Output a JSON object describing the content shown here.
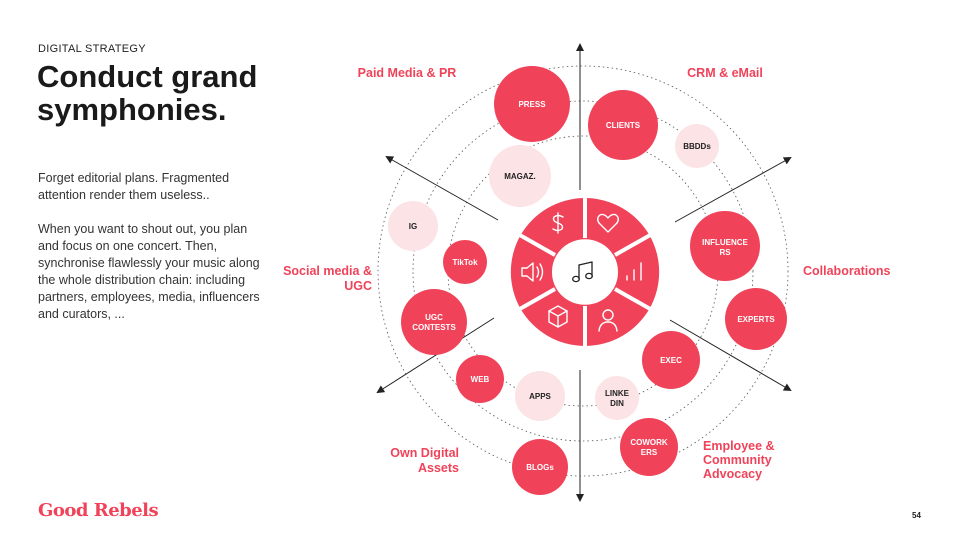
{
  "eyebrow": "DIGITAL STRATEGY",
  "title": "Conduct grand symphonies.",
  "intro": "Forget editorial plans. Fragmented attention render them useless..",
  "body": "When you want to shout out, you plan and focus on one concert. Then, synchronise flawlessly your music along the whole distribution chain: including partners, employees, media, influencers and curators, ...",
  "logo": "Good Rebels",
  "page_number": "54",
  "colors": {
    "accent": "#f0435a",
    "light": "#fbe3e6",
    "line": "#222222"
  },
  "quadrants": {
    "paid": "Paid Media & PR",
    "crm": "CRM & eMail",
    "social": [
      "Social media &",
      "UGC"
    ],
    "collab": "Collaborations",
    "owned": [
      "Own Digital",
      "Assets"
    ],
    "employee": [
      "Employee &",
      "Community",
      "Advocacy"
    ]
  },
  "bubbles": {
    "press": "PRESS",
    "clients": "CLIENTS",
    "bbdds": "BBDDs",
    "magaz": "MAGAZ.",
    "ig": "IG",
    "tiktok": "TikTok",
    "influencers": [
      "INFLUENCE",
      "RS"
    ],
    "experts": "EXPERTS",
    "ugc": [
      "UGC",
      "CONTESTS"
    ],
    "exec": "EXEC",
    "web": "WEB",
    "apps": "APPS",
    "linkedin": [
      "LINKE",
      "DIN"
    ],
    "coworkers": [
      "COWORK",
      "ERS"
    ],
    "blogs": "BLOGs"
  },
  "hub_icons": [
    "dollar-icon",
    "heart-icon",
    "bar-chart-icon",
    "user-icon",
    "cube-icon",
    "speaker-icon",
    "music-note-icon"
  ]
}
